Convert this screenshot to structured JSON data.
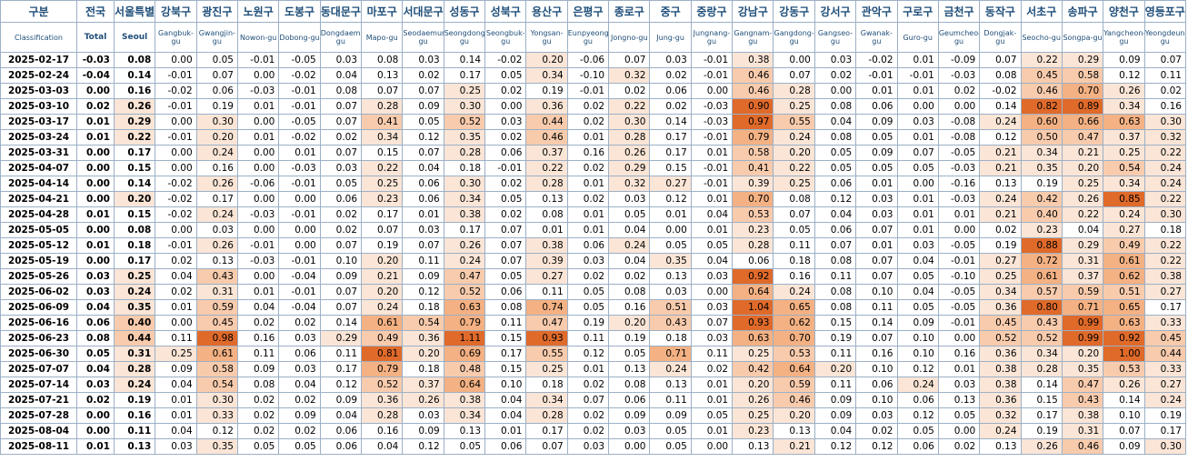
{
  "header_ko": [
    "구분",
    "전국",
    "서울특별",
    "강북구",
    "광진구",
    "노원구",
    "도봉구",
    "동대문구",
    "마포구",
    "서대문구",
    "성동구",
    "성북구",
    "용산구",
    "은평구",
    "종로구",
    "중구",
    "중랑구",
    "강남구",
    "강동구",
    "강서구",
    "관악구",
    "구로구",
    "금천구",
    "동작구",
    "서초구",
    "송파구",
    "양천구",
    "영등포구"
  ],
  "header_en": [
    "Classification",
    "Total",
    "Seoul",
    "Gangbuk-gu",
    "Gwangjin-gu",
    "Nowon-gu",
    "Dobong-gu",
    "Dongdaemun-gu",
    "Mapo-gu",
    "Seodaemun-gu",
    "Seongdong-gu",
    "Seongbuk-gu",
    "Yongsan-gu",
    "Eunpyeong-gu",
    "Jongno-gu",
    "Jung-gu",
    "Jungnang-gu",
    "Gangnam-gu",
    "Gangdong-gu",
    "Gangseo-gu",
    "Gwanak-gu",
    "Guro-gu",
    "Geumcheon-gu",
    "Dongjak-gu",
    "Seocho-gu",
    "Songpa-gu",
    "Yangcheon-gu",
    "Yeongdeungpo-gu"
  ],
  "rows": [
    [
      "2025-02-17",
      "-0.03",
      "0.08",
      "0.00",
      "0.05",
      "-0.01",
      "-0.05",
      "0.03",
      "0.08",
      "0.03",
      "0.14",
      "-0.02",
      "0.20",
      "-0.06",
      "0.07",
      "0.03",
      "-0.01",
      "0.38",
      "0.00",
      "0.03",
      "-0.02",
      "0.01",
      "-0.09",
      "0.07",
      "0.22",
      "0.29",
      "0.09",
      "0.07"
    ],
    [
      "2025-02-24",
      "-0.04",
      "0.14",
      "-0.01",
      "0.07",
      "0.00",
      "-0.02",
      "0.04",
      "0.13",
      "0.02",
      "0.17",
      "0.05",
      "0.34",
      "-0.10",
      "0.32",
      "0.02",
      "-0.01",
      "0.46",
      "0.07",
      "0.02",
      "-0.01",
      "-0.01",
      "-0.03",
      "0.08",
      "0.45",
      "0.58",
      "0.12",
      "0.11"
    ],
    [
      "2025-03-03",
      "0.00",
      "0.16",
      "-0.02",
      "0.06",
      "-0.03",
      "-0.01",
      "0.08",
      "0.07",
      "0.07",
      "0.25",
      "0.02",
      "0.19",
      "-0.01",
      "0.02",
      "0.06",
      "0.00",
      "0.46",
      "0.28",
      "0.00",
      "0.01",
      "0.01",
      "0.02",
      "-0.02",
      "0.46",
      "0.70",
      "0.26",
      "0.02"
    ],
    [
      "2025-03-10",
      "0.02",
      "0.26",
      "-0.01",
      "0.19",
      "0.01",
      "-0.01",
      "0.07",
      "0.28",
      "0.09",
      "0.30",
      "0.00",
      "0.36",
      "0.02",
      "0.22",
      "0.02",
      "-0.03",
      "0.90",
      "0.25",
      "0.08",
      "0.06",
      "0.00",
      "0.00",
      "0.14",
      "0.82",
      "0.89",
      "0.34",
      "0.16"
    ],
    [
      "2025-03-17",
      "0.01",
      "0.29",
      "0.00",
      "0.30",
      "0.00",
      "-0.05",
      "0.07",
      "0.41",
      "0.05",
      "0.52",
      "0.03",
      "0.44",
      "0.02",
      "0.30",
      "0.14",
      "-0.03",
      "0.97",
      "0.55",
      "0.04",
      "0.09",
      "0.03",
      "-0.08",
      "0.24",
      "0.60",
      "0.66",
      "0.63",
      "0.30"
    ],
    [
      "2025-03-24",
      "0.01",
      "0.22",
      "-0.01",
      "0.20",
      "0.01",
      "-0.02",
      "0.02",
      "0.34",
      "0.12",
      "0.35",
      "0.02",
      "0.46",
      "0.01",
      "0.28",
      "0.17",
      "-0.01",
      "0.79",
      "0.24",
      "0.08",
      "0.05",
      "0.01",
      "-0.08",
      "0.12",
      "0.50",
      "0.47",
      "0.37",
      "0.32"
    ],
    [
      "2025-03-31",
      "0.00",
      "0.17",
      "0.00",
      "0.24",
      "0.00",
      "0.01",
      "0.07",
      "0.15",
      "0.07",
      "0.28",
      "0.06",
      "0.37",
      "0.16",
      "0.26",
      "0.17",
      "0.01",
      "0.58",
      "0.20",
      "0.05",
      "0.09",
      "0.07",
      "-0.05",
      "0.21",
      "0.34",
      "0.21",
      "0.25",
      "0.22"
    ],
    [
      "2025-04-07",
      "0.00",
      "0.15",
      "0.00",
      "0.16",
      "0.00",
      "-0.03",
      "0.03",
      "0.22",
      "0.04",
      "0.18",
      "-0.01",
      "0.22",
      "0.02",
      "0.29",
      "0.15",
      "-0.01",
      "0.41",
      "0.22",
      "0.05",
      "0.05",
      "0.05",
      "-0.03",
      "0.21",
      "0.35",
      "0.20",
      "0.54",
      "0.24"
    ],
    [
      "2025-04-14",
      "0.00",
      "0.14",
      "-0.02",
      "0.26",
      "-0.06",
      "-0.01",
      "0.05",
      "0.25",
      "0.06",
      "0.30",
      "0.02",
      "0.28",
      "0.01",
      "0.32",
      "0.27",
      "-0.01",
      "0.39",
      "0.25",
      "0.06",
      "0.01",
      "0.00",
      "-0.16",
      "0.13",
      "0.19",
      "0.25",
      "0.34",
      "0.24"
    ],
    [
      "2025-04-21",
      "0.00",
      "0.20",
      "-0.02",
      "0.17",
      "0.00",
      "0.00",
      "0.06",
      "0.23",
      "0.06",
      "0.34",
      "0.05",
      "0.13",
      "0.02",
      "0.03",
      "0.12",
      "0.01",
      "0.70",
      "0.08",
      "0.12",
      "0.03",
      "0.01",
      "-0.03",
      "0.24",
      "0.42",
      "0.26",
      "0.85",
      "0.22"
    ],
    [
      "2025-04-28",
      "0.01",
      "0.15",
      "-0.02",
      "0.24",
      "-0.03",
      "-0.01",
      "0.02",
      "0.17",
      "0.01",
      "0.38",
      "0.02",
      "0.08",
      "0.01",
      "0.05",
      "0.01",
      "0.04",
      "0.53",
      "0.07",
      "0.04",
      "0.03",
      "0.01",
      "0.01",
      "0.21",
      "0.40",
      "0.22",
      "0.24",
      "0.30"
    ],
    [
      "2025-05-05",
      "0.00",
      "0.08",
      "0.00",
      "0.03",
      "0.00",
      "0.00",
      "0.02",
      "0.07",
      "0.03",
      "0.17",
      "0.07",
      "0.01",
      "0.01",
      "0.04",
      "0.00",
      "0.01",
      "0.23",
      "0.05",
      "0.06",
      "0.07",
      "0.01",
      "0.00",
      "0.02",
      "0.23",
      "0.04",
      "0.27",
      "0.18"
    ],
    [
      "2025-05-12",
      "0.01",
      "0.18",
      "-0.01",
      "0.26",
      "-0.01",
      "0.00",
      "0.07",
      "0.19",
      "0.07",
      "0.26",
      "0.07",
      "0.38",
      "0.06",
      "0.24",
      "0.05",
      "0.05",
      "0.28",
      "0.11",
      "0.07",
      "0.01",
      "0.03",
      "-0.05",
      "0.19",
      "0.88",
      "0.29",
      "0.49",
      "0.22"
    ],
    [
      "2025-05-19",
      "0.00",
      "0.17",
      "0.02",
      "0.13",
      "-0.03",
      "-0.01",
      "0.10",
      "0.20",
      "0.11",
      "0.24",
      "0.07",
      "0.39",
      "0.03",
      "0.04",
      "0.35",
      "0.04",
      "0.06",
      "0.18",
      "0.08",
      "0.07",
      "0.04",
      "-0.01",
      "0.27",
      "0.72",
      "0.31",
      "0.61",
      "0.22"
    ],
    [
      "2025-05-26",
      "0.03",
      "0.25",
      "0.04",
      "0.43",
      "0.00",
      "-0.04",
      "0.09",
      "0.21",
      "0.09",
      "0.47",
      "0.05",
      "0.27",
      "0.02",
      "0.02",
      "0.13",
      "0.03",
      "0.92",
      "0.16",
      "0.11",
      "0.07",
      "0.05",
      "-0.10",
      "0.25",
      "0.61",
      "0.37",
      "0.62",
      "0.38"
    ],
    [
      "2025-06-02",
      "0.03",
      "0.24",
      "0.02",
      "0.31",
      "0.01",
      "-0.01",
      "0.07",
      "0.20",
      "0.12",
      "0.52",
      "0.06",
      "0.11",
      "0.05",
      "0.08",
      "0.03",
      "0.00",
      "0.64",
      "0.24",
      "0.08",
      "0.10",
      "0.04",
      "-0.05",
      "0.34",
      "0.57",
      "0.59",
      "0.51",
      "0.27"
    ],
    [
      "2025-06-09",
      "0.04",
      "0.35",
      "0.01",
      "0.59",
      "0.04",
      "-0.04",
      "0.07",
      "0.24",
      "0.18",
      "0.63",
      "0.08",
      "0.74",
      "0.05",
      "0.16",
      "0.51",
      "0.03",
      "1.04",
      "0.65",
      "0.08",
      "0.11",
      "0.05",
      "-0.05",
      "0.36",
      "0.80",
      "0.71",
      "0.65",
      "0.17"
    ],
    [
      "2025-06-16",
      "0.06",
      "0.40",
      "0.00",
      "0.45",
      "0.02",
      "0.02",
      "0.14",
      "0.61",
      "0.54",
      "0.79",
      "0.11",
      "0.47",
      "0.19",
      "0.20",
      "0.43",
      "0.07",
      "0.93",
      "0.62",
      "0.15",
      "0.14",
      "0.09",
      "-0.01",
      "0.45",
      "0.43",
      "0.99",
      "0.63",
      "0.33"
    ],
    [
      "2025-06-23",
      "0.08",
      "0.44",
      "0.11",
      "0.98",
      "0.16",
      "0.03",
      "0.29",
      "0.49",
      "0.36",
      "1.11",
      "0.15",
      "0.93",
      "0.11",
      "0.19",
      "0.18",
      "0.03",
      "0.63",
      "0.70",
      "0.19",
      "0.07",
      "0.10",
      "0.00",
      "0.52",
      "0.52",
      "0.99",
      "0.92",
      "0.45"
    ],
    [
      "2025-06-30",
      "0.05",
      "0.31",
      "0.25",
      "0.61",
      "0.11",
      "0.06",
      "0.11",
      "0.81",
      "0.20",
      "0.69",
      "0.17",
      "0.55",
      "0.12",
      "0.05",
      "0.71",
      "0.11",
      "0.25",
      "0.53",
      "0.11",
      "0.16",
      "0.10",
      "0.16",
      "0.36",
      "0.34",
      "0.20",
      "1.00",
      "0.44"
    ],
    [
      "2025-07-07",
      "0.04",
      "0.28",
      "0.09",
      "0.58",
      "0.09",
      "0.03",
      "0.17",
      "0.79",
      "0.18",
      "0.48",
      "0.15",
      "0.25",
      "0.01",
      "0.13",
      "0.24",
      "0.02",
      "0.42",
      "0.64",
      "0.20",
      "0.10",
      "0.12",
      "0.01",
      "0.38",
      "0.28",
      "0.35",
      "0.53",
      "0.33"
    ],
    [
      "2025-07-14",
      "0.03",
      "0.24",
      "0.04",
      "0.54",
      "0.08",
      "0.04",
      "0.12",
      "0.52",
      "0.37",
      "0.64",
      "0.10",
      "0.18",
      "0.02",
      "0.08",
      "0.13",
      "0.01",
      "0.20",
      "0.59",
      "0.11",
      "0.06",
      "0.24",
      "0.03",
      "0.38",
      "0.14",
      "0.47",
      "0.26",
      "0.27"
    ],
    [
      "2025-07-21",
      "0.02",
      "0.19",
      "0.01",
      "0.30",
      "0.02",
      "0.02",
      "0.09",
      "0.36",
      "0.26",
      "0.38",
      "0.04",
      "0.34",
      "0.07",
      "0.06",
      "0.11",
      "0.01",
      "0.26",
      "0.46",
      "0.09",
      "0.10",
      "0.06",
      "0.13",
      "0.36",
      "0.15",
      "0.43",
      "0.14",
      "0.24"
    ],
    [
      "2025-07-28",
      "0.00",
      "0.16",
      "0.01",
      "0.33",
      "0.02",
      "0.09",
      "0.04",
      "0.28",
      "0.03",
      "0.34",
      "0.04",
      "0.28",
      "0.02",
      "0.09",
      "0.09",
      "0.05",
      "0.25",
      "0.20",
      "0.09",
      "0.03",
      "0.12",
      "0.05",
      "0.32",
      "0.17",
      "0.38",
      "0.10",
      "0.19"
    ],
    [
      "2025-08-04",
      "0.00",
      "0.11",
      "0.04",
      "0.12",
      "0.02",
      "0.02",
      "0.06",
      "0.16",
      "0.09",
      "0.13",
      "0.01",
      "0.17",
      "0.02",
      "0.03",
      "0.05",
      "0.01",
      "0.23",
      "0.13",
      "0.04",
      "0.02",
      "0.05",
      "0.00",
      "0.24",
      "0.19",
      "0.31",
      "0.07",
      "0.17"
    ],
    [
      "2025-08-11",
      "0.01",
      "0.13",
      "0.03",
      "0.35",
      "0.05",
      "0.05",
      "0.06",
      "0.04",
      "0.12",
      "0.05",
      "0.06",
      "0.07",
      "0.03",
      "0.00",
      "0.05",
      "0.00",
      "0.13",
      "0.21",
      "0.12",
      "0.12",
      "0.06",
      "0.02",
      "0.13",
      "0.26",
      "0.46",
      "0.09",
      "0.30"
    ]
  ],
  "colors": {
    "header_text": "#1f4e79",
    "grid": "#9bb0c6",
    "low": "#fbe5d6",
    "mid": "#f8cbad",
    "high": "#f4b183",
    "top": "#e06a2a"
  }
}
